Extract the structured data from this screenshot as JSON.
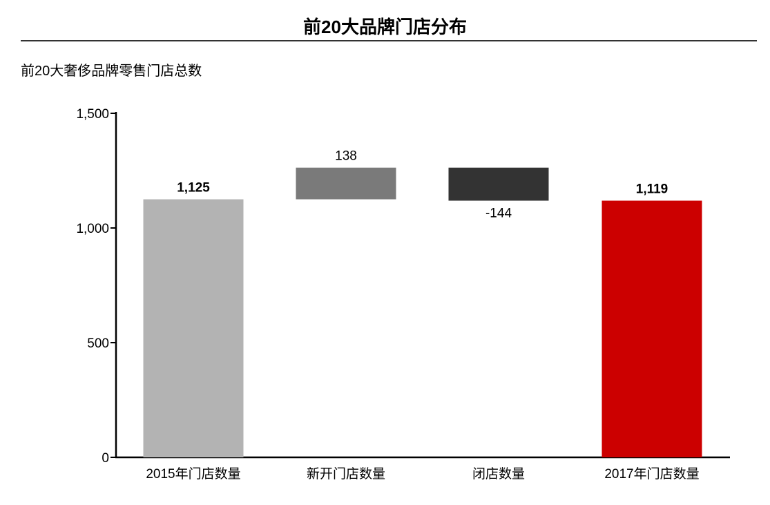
{
  "header": {
    "title": "前20大品牌门店分布",
    "subtitle": "前20大奢侈品牌零售门店总数"
  },
  "colors": {
    "total_start": "#b3b3b3",
    "increase": "#7a7a7a",
    "decrease": "#333333",
    "total_end": "#cc0000",
    "axis": "#000000"
  },
  "chart_data": {
    "type": "bar",
    "subtype": "waterfall",
    "categories": [
      "2015年门店数量",
      "新开门店数量",
      "闭店数量",
      "2017年门店数量"
    ],
    "values": [
      1125,
      138,
      -144,
      1119
    ],
    "bar_kinds": [
      "total",
      "delta",
      "delta",
      "total"
    ],
    "data_labels": [
      "1,125",
      "138",
      "-144",
      "1,119"
    ],
    "y_ticks": [
      "0",
      "500",
      "1,000",
      "1,500"
    ],
    "y_tick_values": [
      0,
      500,
      1000,
      1500
    ],
    "ylim": [
      0,
      1500
    ],
    "xlabel": "",
    "ylabel": "",
    "grid": false,
    "legend": "none"
  }
}
